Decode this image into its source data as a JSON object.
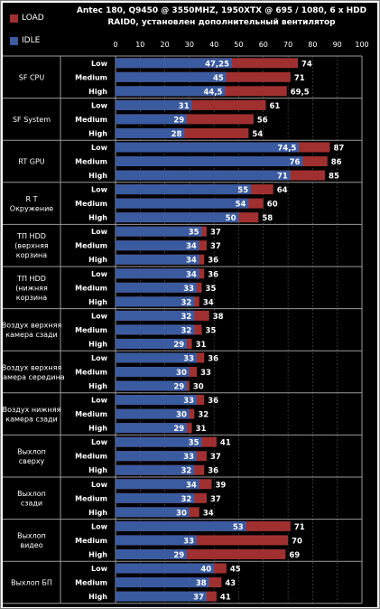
{
  "title_line1": "Antec 180, Q9450 @ 3550MHZ, 1950XTX @ 695 / 1080,   6 x HDD",
  "title_line2": "RAID0, установлен дополнительный вентилятор",
  "colors": {
    "load": "#a0302f",
    "idle": "#3b5ba0",
    "background": "#000000",
    "grid": "#555555",
    "text": "#ffffff"
  },
  "chart_data": {
    "type": "bar",
    "orientation": "horizontal",
    "bar_mode": "overlay",
    "xlim": [
      0,
      100
    ],
    "x_ticks": [
      "0",
      "10",
      "20",
      "30",
      "40",
      "50",
      "60",
      "70",
      "80",
      "90",
      "100"
    ],
    "levels": [
      "Low",
      "Medium",
      "High"
    ],
    "legend": [
      {
        "name": "LOAD",
        "color": "#a0302f"
      },
      {
        "name": "IDLE",
        "color": "#3b5ba0"
      }
    ],
    "legend_position": "top-left",
    "groups": [
      {
        "label": [
          "SF CPU"
        ],
        "load": [
          74,
          71,
          "69,5"
        ],
        "idle": [
          "47,25",
          45,
          "44,5"
        ]
      },
      {
        "label": [
          "SF System"
        ],
        "load": [
          61,
          56,
          54
        ],
        "idle": [
          31,
          29,
          28
        ]
      },
      {
        "label": [
          "RT  GPU"
        ],
        "load": [
          87,
          86,
          85
        ],
        "idle": [
          "74,5",
          76,
          71
        ]
      },
      {
        "label": [
          "R T",
          "Окружение"
        ],
        "load": [
          64,
          60,
          58
        ],
        "idle": [
          55,
          54,
          50
        ]
      },
      {
        "label": [
          "ТП HDD",
          "(верхняя",
          "корзина"
        ],
        "load": [
          37,
          37,
          36
        ],
        "idle": [
          35,
          34,
          34
        ]
      },
      {
        "label": [
          "ТП HDD",
          "(нижняя",
          "корзина"
        ],
        "load": [
          36,
          35,
          34
        ],
        "idle": [
          34,
          33,
          32
        ]
      },
      {
        "label": [
          "Воздух верхняя",
          "камера сзади"
        ],
        "load": [
          38,
          35,
          31
        ],
        "idle": [
          32,
          32,
          29
        ]
      },
      {
        "label": [
          "Воздух верхняя",
          "камера середина"
        ],
        "load": [
          36,
          33,
          30
        ],
        "idle": [
          33,
          30,
          29
        ]
      },
      {
        "label": [
          "Воздух нижняя",
          "камера сзади"
        ],
        "load": [
          36,
          32,
          31
        ],
        "idle": [
          33,
          30,
          29
        ]
      },
      {
        "label": [
          "Выхлоп",
          "сверху"
        ],
        "load": [
          41,
          37,
          36
        ],
        "idle": [
          35,
          33,
          32
        ]
      },
      {
        "label": [
          "Выхлоп",
          "сзади"
        ],
        "load": [
          39,
          37,
          34
        ],
        "idle": [
          34,
          32,
          30
        ]
      },
      {
        "label": [
          "Выхлоп",
          "видео"
        ],
        "load": [
          71,
          70,
          69
        ],
        "idle": [
          53,
          33,
          29
        ]
      },
      {
        "label": [
          "Выхлоп БП"
        ],
        "load": [
          45,
          43,
          41
        ],
        "idle": [
          40,
          38,
          37
        ]
      }
    ]
  }
}
